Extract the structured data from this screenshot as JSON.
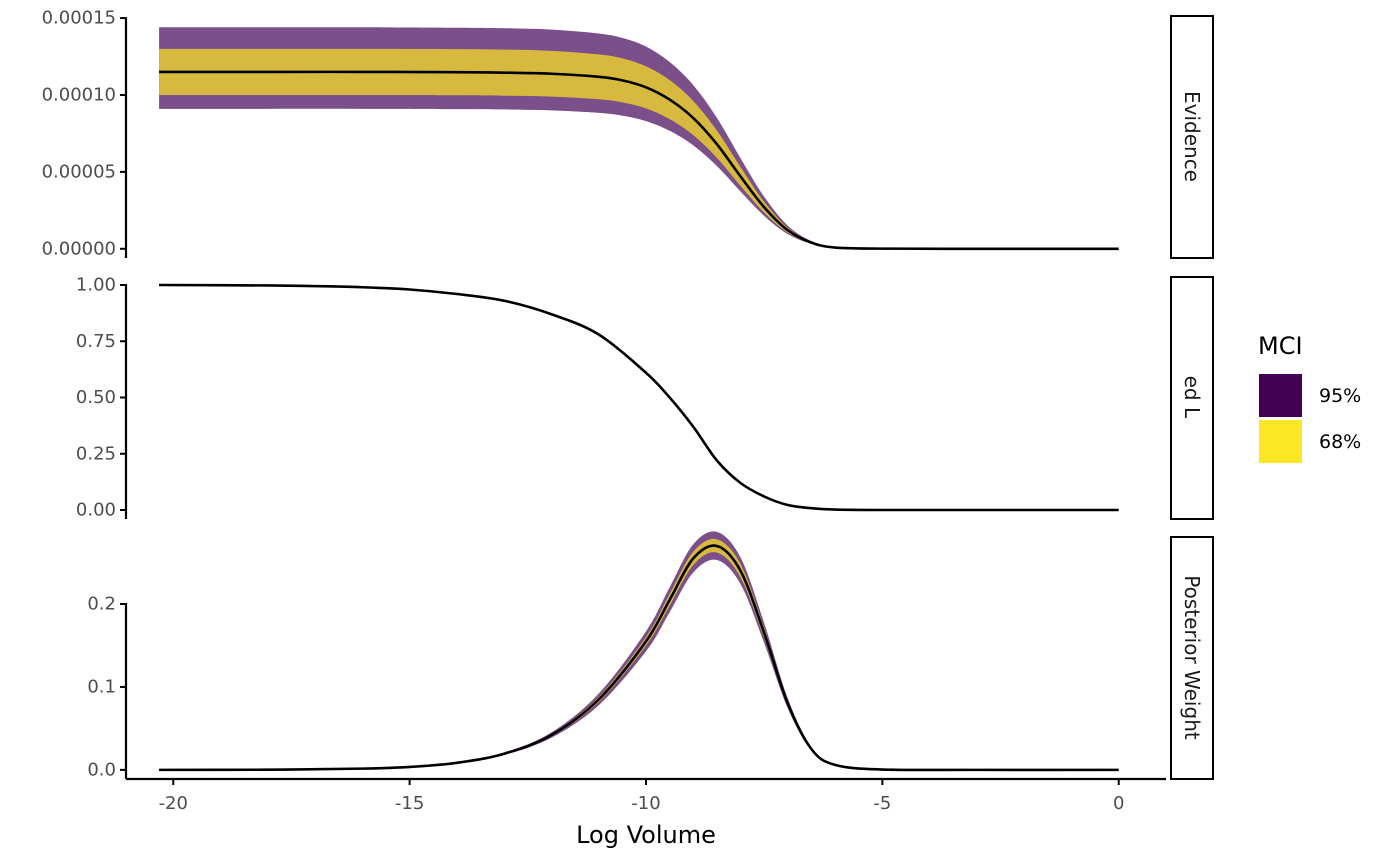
{
  "chart_data": {
    "type": "area",
    "xlabel": "Log Volume",
    "x_ticks": [
      -20,
      -15,
      -10,
      -5,
      0
    ],
    "x_tick_labels": [
      "-20",
      "-15",
      "-10",
      "-5",
      "0"
    ],
    "xlim": [
      -21.0,
      1.0
    ],
    "legend": {
      "title": "MCI",
      "position": "right",
      "entries": [
        {
          "label": "95%",
          "color": "#440154"
        },
        {
          "label": "68%",
          "color": "#FDE725"
        }
      ]
    },
    "colors": {
      "band95_fill": "#7a4f8a",
      "band68_fill": "#d7b93f",
      "line": "#000000",
      "axis": "#000000",
      "tick_label": "#4d4d4d"
    },
    "facets": [
      {
        "strip": "Evidence",
        "ylim": [
          -6e-06,
          0.000152
        ],
        "y_ticks": [
          0,
          5e-05,
          0.0001,
          0.00015
        ],
        "y_tick_labels": [
          "0.00000",
          "0.00005",
          "0.00010",
          "0.00015"
        ],
        "x": [
          -20.3,
          -18,
          -16,
          -14,
          -13,
          -12,
          -11,
          -10.5,
          -10,
          -9.5,
          -9,
          -8.5,
          -8,
          -7.5,
          -7,
          -6.5,
          -6,
          -5,
          -3,
          -1,
          0
        ],
        "estimate": [
          0.000115,
          0.000115,
          0.000115,
          0.0001148,
          0.0001145,
          0.0001138,
          0.0001118,
          0.0001095,
          0.000105,
          9.7e-05,
          8.5e-05,
          6.8e-05,
          4.7e-05,
          2.7e-05,
          1.2e-05,
          4e-06,
          8e-07,
          1e-07,
          0,
          0,
          0
        ],
        "ci68_lower": [
          0.0001,
          0.0001,
          0.0001,
          9.98e-05,
          9.95e-05,
          9.89e-05,
          9.72e-05,
          9.52e-05,
          9.13e-05,
          8.43e-05,
          7.39e-05,
          5.91e-05,
          4.09e-05,
          2.35e-05,
          1.04e-05,
          3.5e-06,
          7e-07,
          1e-07,
          0,
          0,
          0
        ],
        "ci68_upper": [
          0.00013,
          0.00013,
          0.00013,
          0.0001298,
          0.0001295,
          0.0001287,
          0.0001264,
          0.0001238,
          0.0001187,
          0.0001097,
          9.61e-05,
          7.69e-05,
          5.31e-05,
          3.05e-05,
          1.36e-05,
          4.5e-06,
          9e-07,
          1e-07,
          0,
          0,
          0
        ],
        "ci95_lower": [
          9.1e-05,
          9.1e-05,
          9.1e-05,
          9.08e-05,
          9.06e-05,
          9e-05,
          8.84e-05,
          8.66e-05,
          8.3e-05,
          7.67e-05,
          6.72e-05,
          5.38e-05,
          3.72e-05,
          2.14e-05,
          9.5e-06,
          3.2e-06,
          6e-07,
          1e-07,
          0,
          0,
          0
        ],
        "ci95_upper": [
          0.000144,
          0.000144,
          0.000144,
          0.0001437,
          0.0001434,
          0.0001425,
          0.00014,
          0.0001371,
          0.0001315,
          0.0001214,
          0.0001064,
          8.51e-05,
          5.89e-05,
          3.38e-05,
          1.5e-05,
          5e-06,
          1e-06,
          1e-07,
          0,
          0,
          0
        ]
      },
      {
        "strip": "Normalized Likelihood",
        "ylim": [
          -0.04,
          1.04
        ],
        "y_ticks": [
          0,
          0.25,
          0.5,
          0.75,
          1.0
        ],
        "y_tick_labels": [
          "0.00",
          "0.25",
          "0.50",
          "0.75",
          "1.00"
        ],
        "x": [
          -20.3,
          -18,
          -17,
          -16,
          -15,
          -14,
          -13,
          -12,
          -11,
          -10,
          -9.5,
          -9,
          -8.5,
          -8,
          -7.5,
          -7,
          -6.5,
          -6,
          -5,
          -3,
          0
        ],
        "estimate": [
          1.0,
          0.998,
          0.995,
          0.99,
          0.98,
          0.96,
          0.93,
          0.87,
          0.78,
          0.61,
          0.5,
          0.37,
          0.22,
          0.12,
          0.06,
          0.022,
          0.008,
          0.002,
          0.0,
          0.0,
          0.0
        ]
      },
      {
        "strip": "Posterior Weight",
        "ylim": [
          -0.011,
          0.282
        ],
        "y_ticks": [
          0,
          0.1,
          0.2
        ],
        "y_tick_labels": [
          "0.0",
          "0.1",
          "0.2"
        ],
        "x": [
          -20.3,
          -18,
          -16,
          -15,
          -14,
          -13,
          -12,
          -11,
          -10,
          -9.5,
          -9,
          -8.5,
          -8,
          -7.5,
          -7,
          -6.5,
          -6,
          -5,
          -3,
          0
        ],
        "estimate": [
          0.0,
          0.0002,
          0.0015,
          0.0035,
          0.0085,
          0.0195,
          0.042,
          0.085,
          0.155,
          0.205,
          0.255,
          0.27,
          0.24,
          0.165,
          0.08,
          0.025,
          0.006,
          0.0004,
          0.0,
          0.0
        ],
        "ci68_lower": [
          0.0,
          0.0002,
          0.0014,
          0.0034,
          0.0082,
          0.0188,
          0.0405,
          0.082,
          0.15,
          0.198,
          0.247,
          0.262,
          0.232,
          0.159,
          0.077,
          0.024,
          0.0058,
          0.0004,
          0.0,
          0.0
        ],
        "ci68_upper": [
          0.0,
          0.0002,
          0.0016,
          0.0036,
          0.0088,
          0.0202,
          0.0435,
          0.088,
          0.16,
          0.212,
          0.263,
          0.278,
          0.248,
          0.171,
          0.083,
          0.026,
          0.0062,
          0.0004,
          0.0,
          0.0
        ],
        "ci95_lower": [
          0.0,
          0.0002,
          0.0013,
          0.0032,
          0.0078,
          0.018,
          0.0388,
          0.078,
          0.143,
          0.19,
          0.238,
          0.253,
          0.224,
          0.153,
          0.074,
          0.023,
          0.0055,
          0.0003,
          0.0,
          0.0
        ],
        "ci95_upper": [
          0.0,
          0.0002,
          0.0017,
          0.0038,
          0.0092,
          0.021,
          0.0452,
          0.092,
          0.167,
          0.22,
          0.272,
          0.287,
          0.256,
          0.177,
          0.086,
          0.027,
          0.0065,
          0.0005,
          0.0,
          0.0
        ]
      }
    ]
  }
}
